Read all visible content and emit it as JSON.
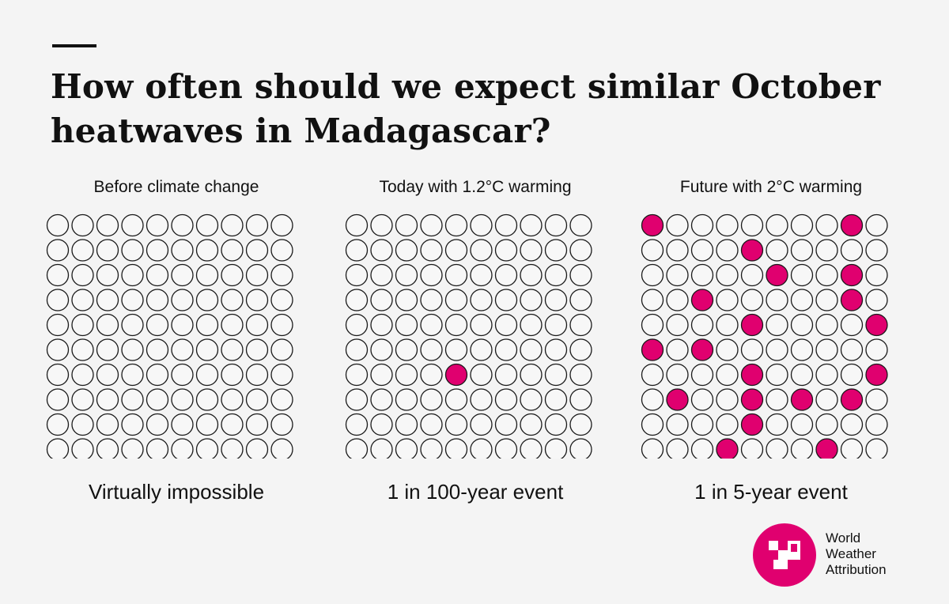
{
  "page": {
    "title": "How often should we expect similar October heatwaves in Madagascar?",
    "brand": {
      "line1": "World",
      "line2": "Weather",
      "line3": "Attribution",
      "logo_icon": "wwa-logo-icon",
      "color": "#e0006f"
    }
  },
  "colors": {
    "filled": "#e0006f",
    "empty": "#f7f7f7",
    "stroke": "#1a1a1a",
    "background": "#f4f4f4"
  },
  "chart_data": [
    {
      "type": "waffle",
      "title": "Before climate change",
      "caption": "Virtually impossible",
      "rows": 10,
      "cols": 10,
      "filled": []
    },
    {
      "type": "waffle",
      "title": "Today with 1.2°C warming",
      "caption": "1 in 100-year event",
      "rows": 10,
      "cols": 10,
      "filled": [
        [
          6,
          4
        ]
      ]
    },
    {
      "type": "waffle",
      "title": "Future with 2°C warming",
      "caption": "1 in 5-year event",
      "rows": 10,
      "cols": 10,
      "filled": [
        [
          0,
          0
        ],
        [
          0,
          8
        ],
        [
          1,
          4
        ],
        [
          2,
          5
        ],
        [
          2,
          8
        ],
        [
          3,
          2
        ],
        [
          3,
          8
        ],
        [
          4,
          4
        ],
        [
          4,
          9
        ],
        [
          5,
          0
        ],
        [
          5,
          2
        ],
        [
          6,
          4
        ],
        [
          6,
          9
        ],
        [
          7,
          1
        ],
        [
          7,
          4
        ],
        [
          7,
          6
        ],
        [
          7,
          8
        ],
        [
          8,
          4
        ],
        [
          9,
          3
        ],
        [
          9,
          7
        ]
      ]
    }
  ]
}
